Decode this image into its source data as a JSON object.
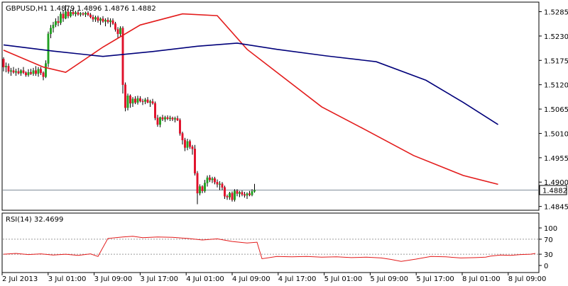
{
  "chart_data": {
    "type": "candlestick",
    "title": "GBPUSD,H1  1.4879 1.4896 1.4876 1.4882",
    "symbol": "GBPUSD",
    "timeframe": "H1",
    "ohlc_header": {
      "open": 1.4879,
      "high": 1.4896,
      "low": 1.4876,
      "close": 1.4882
    },
    "last_price_label": "1.4882",
    "price_ticks": [
      "1.5285",
      "1.5230",
      "1.5175",
      "1.5120",
      "1.5065",
      "1.5010",
      "1.4955",
      "1.4900",
      "1.4845"
    ],
    "ylim": [
      1.4838,
      1.5305
    ],
    "time_labels": [
      "2 Jul 2013",
      "3 Jul 01:00",
      "3 Jul 09:00",
      "3 Jul 17:00",
      "4 Jul 01:00",
      "4 Jul 09:00",
      "4 Jul 17:00",
      "5 Jul 01:00",
      "5 Jul 09:00",
      "5 Jul 17:00",
      "8 Jul 01:00",
      "8 Jul 09:00"
    ],
    "candles": [
      [
        1.5178,
        1.5182,
        1.515,
        1.516
      ],
      [
        1.516,
        1.517,
        1.5148,
        1.5162
      ],
      [
        1.5162,
        1.5168,
        1.5145,
        1.515
      ],
      [
        1.515,
        1.5158,
        1.514,
        1.5152
      ],
      [
        1.5152,
        1.516,
        1.5145,
        1.5148
      ],
      [
        1.5148,
        1.5156,
        1.514,
        1.515
      ],
      [
        1.515,
        1.5158,
        1.5143,
        1.5146
      ],
      [
        1.5146,
        1.5155,
        1.514,
        1.5152
      ],
      [
        1.5152,
        1.516,
        1.5144,
        1.5147
      ],
      [
        1.5147,
        1.515,
        1.5138,
        1.5142
      ],
      [
        1.5142,
        1.5155,
        1.5138,
        1.5148
      ],
      [
        1.5148,
        1.5156,
        1.5142,
        1.5145
      ],
      [
        1.5145,
        1.5158,
        1.514,
        1.5152
      ],
      [
        1.5152,
        1.5162,
        1.514,
        1.5145
      ],
      [
        1.5145,
        1.516,
        1.5138,
        1.5155
      ],
      [
        1.5155,
        1.516,
        1.5142,
        1.5147
      ],
      [
        1.5147,
        1.515,
        1.513,
        1.5138
      ],
      [
        1.5138,
        1.5175,
        1.5135,
        1.5168
      ],
      [
        1.5168,
        1.524,
        1.516,
        1.5235
      ],
      [
        1.5235,
        1.5255,
        1.5225,
        1.5248
      ],
      [
        1.5248,
        1.5262,
        1.5238,
        1.5255
      ],
      [
        1.5255,
        1.527,
        1.525,
        1.5263
      ],
      [
        1.5263,
        1.5275,
        1.5252,
        1.526
      ],
      [
        1.526,
        1.5285,
        1.5255,
        1.528
      ],
      [
        1.528,
        1.5288,
        1.5262,
        1.527
      ],
      [
        1.527,
        1.53,
        1.5268,
        1.5285
      ],
      [
        1.5285,
        1.5292,
        1.527,
        1.5275
      ],
      [
        1.5275,
        1.529,
        1.5272,
        1.5284
      ],
      [
        1.5284,
        1.5292,
        1.5276,
        1.528
      ],
      [
        1.528,
        1.5287,
        1.5274,
        1.5283
      ],
      [
        1.5283,
        1.5288,
        1.5276,
        1.5279
      ],
      [
        1.5279,
        1.5284,
        1.5274,
        1.5281
      ],
      [
        1.5281,
        1.5284,
        1.5276,
        1.5279
      ],
      [
        1.5279,
        1.5285,
        1.5273,
        1.5282
      ],
      [
        1.5282,
        1.5286,
        1.5275,
        1.5278
      ],
      [
        1.5278,
        1.5282,
        1.527,
        1.5273
      ],
      [
        1.5273,
        1.5278,
        1.5262,
        1.5268
      ],
      [
        1.5268,
        1.5276,
        1.5262,
        1.5272
      ],
      [
        1.5272,
        1.5276,
        1.526,
        1.5265
      ],
      [
        1.5265,
        1.5272,
        1.5255,
        1.5269
      ],
      [
        1.5269,
        1.5275,
        1.526,
        1.5263
      ],
      [
        1.5263,
        1.527,
        1.5252,
        1.5266
      ],
      [
        1.5266,
        1.5272,
        1.5258,
        1.5262
      ],
      [
        1.5262,
        1.527,
        1.525,
        1.5265
      ],
      [
        1.5265,
        1.527,
        1.5255,
        1.5258
      ],
      [
        1.5258,
        1.5262,
        1.524,
        1.5245
      ],
      [
        1.5245,
        1.525,
        1.5225,
        1.5235
      ],
      [
        1.5235,
        1.5252,
        1.523,
        1.5248
      ],
      [
        1.5248,
        1.5252,
        1.51,
        1.512
      ],
      [
        1.512,
        1.5125,
        1.506,
        1.5068
      ],
      [
        1.5068,
        1.51,
        1.5062,
        1.5095
      ],
      [
        1.5095,
        1.5098,
        1.5068,
        1.5078
      ],
      [
        1.5078,
        1.5092,
        1.507,
        1.5088
      ],
      [
        1.5088,
        1.5094,
        1.5076,
        1.508
      ],
      [
        1.508,
        1.5095,
        1.5075,
        1.5089
      ],
      [
        1.5089,
        1.5094,
        1.508,
        1.5083
      ],
      [
        1.5083,
        1.5088,
        1.5074,
        1.5082
      ],
      [
        1.5082,
        1.509,
        1.5076,
        1.5086
      ],
      [
        1.5086,
        1.5092,
        1.5078,
        1.508
      ],
      [
        1.508,
        1.5086,
        1.507,
        1.5082
      ],
      [
        1.5082,
        1.5088,
        1.5075,
        1.5078
      ],
      [
        1.5078,
        1.5082,
        1.504,
        1.5045
      ],
      [
        1.5045,
        1.5052,
        1.5025,
        1.503
      ],
      [
        1.503,
        1.5048,
        1.5024,
        1.5046
      ],
      [
        1.5046,
        1.5052,
        1.5038,
        1.5042
      ],
      [
        1.5042,
        1.505,
        1.5036,
        1.5046
      ],
      [
        1.5046,
        1.5051,
        1.504,
        1.5043
      ],
      [
        1.5043,
        1.505,
        1.5038,
        1.5045
      ],
      [
        1.5045,
        1.5048,
        1.5038,
        1.5042
      ],
      [
        1.5042,
        1.5048,
        1.5035,
        1.5044
      ],
      [
        1.5044,
        1.505,
        1.5038,
        1.504
      ],
      [
        1.504,
        1.5044,
        1.5005,
        1.501
      ],
      [
        1.501,
        1.5014,
        1.4985,
        1.4995
      ],
      [
        1.4995,
        1.5,
        1.497,
        1.4978
      ],
      [
        1.4978,
        1.4998,
        1.4972,
        1.4992
      ],
      [
        1.4992,
        1.4996,
        1.4975,
        1.498
      ],
      [
        1.498,
        1.4984,
        1.4962,
        1.4975
      ],
      [
        1.4975,
        1.4984,
        1.4915,
        1.492
      ],
      [
        1.492,
        1.4925,
        1.485,
        1.4875
      ],
      [
        1.4875,
        1.4895,
        1.487,
        1.489
      ],
      [
        1.489,
        1.4893,
        1.4875,
        1.488
      ],
      [
        1.488,
        1.4905,
        1.4876,
        1.4898
      ],
      [
        1.4898,
        1.4915,
        1.489,
        1.491
      ],
      [
        1.491,
        1.4916,
        1.49,
        1.4905
      ],
      [
        1.4905,
        1.4912,
        1.4898,
        1.4908
      ],
      [
        1.4908,
        1.4912,
        1.4895,
        1.49
      ],
      [
        1.49,
        1.4906,
        1.4888,
        1.4895
      ],
      [
        1.4895,
        1.4902,
        1.4882,
        1.4896
      ],
      [
        1.4896,
        1.49,
        1.4882,
        1.4888
      ],
      [
        1.4888,
        1.4892,
        1.4862,
        1.4868
      ],
      [
        1.4868,
        1.4872,
        1.486,
        1.4866
      ],
      [
        1.4866,
        1.4878,
        1.486,
        1.4875
      ],
      [
        1.4875,
        1.4879,
        1.4856,
        1.486
      ],
      [
        1.486,
        1.4884,
        1.4856,
        1.488
      ],
      [
        1.488,
        1.4884,
        1.4868,
        1.4874
      ],
      [
        1.4874,
        1.488,
        1.4866,
        1.4877
      ],
      [
        1.4877,
        1.4881,
        1.4868,
        1.4872
      ],
      [
        1.4872,
        1.4878,
        1.4865,
        1.487
      ],
      [
        1.487,
        1.4877,
        1.4862,
        1.4874
      ],
      [
        1.4874,
        1.488,
        1.4868,
        1.4871
      ],
      [
        1.4871,
        1.4884,
        1.4868,
        1.4879
      ],
      [
        1.4879,
        1.4896,
        1.4876,
        1.4882
      ]
    ],
    "moving_averages": [
      {
        "color": "#e31b1b",
        "values": [
          [
            0,
            1.5198
          ],
          [
            16,
            1.516
          ],
          [
            25,
            1.5148
          ],
          [
            40,
            1.5205
          ],
          [
            55,
            1.5255
          ],
          [
            72,
            1.528
          ],
          [
            86,
            1.5276
          ],
          [
            98,
            1.52
          ],
          [
            128,
            1.507
          ],
          [
            145,
            1.502
          ],
          [
            165,
            1.496
          ],
          [
            185,
            1.4915
          ],
          [
            199,
            1.4895
          ]
        ]
      },
      {
        "color": "#00007a",
        "values": [
          [
            0,
            1.521
          ],
          [
            20,
            1.5196
          ],
          [
            40,
            1.5184
          ],
          [
            60,
            1.5195
          ],
          [
            78,
            1.5207
          ],
          [
            94,
            1.5214
          ],
          [
            110,
            1.52
          ],
          [
            130,
            1.5185
          ],
          [
            150,
            1.5172
          ],
          [
            170,
            1.513
          ],
          [
            185,
            1.508
          ],
          [
            199,
            1.503
          ]
        ]
      }
    ],
    "rsi": {
      "label": "RSI(14) 32.4699",
      "period": 14,
      "last_value": 32.4699,
      "ticks": [
        "100",
        "70",
        "30",
        "0"
      ],
      "levels": [
        70,
        30
      ],
      "ylim": [
        0,
        100
      ],
      "values": [
        [
          0,
          30
        ],
        [
          5,
          32
        ],
        [
          10,
          29
        ],
        [
          15,
          31
        ],
        [
          20,
          28
        ],
        [
          25,
          30
        ],
        [
          30,
          27
        ],
        [
          35,
          31
        ],
        [
          38,
          24
        ],
        [
          42,
          72
        ],
        [
          48,
          76
        ],
        [
          52,
          78
        ],
        [
          56,
          74
        ],
        [
          62,
          76
        ],
        [
          68,
          75
        ],
        [
          74,
          72
        ],
        [
          80,
          68
        ],
        [
          86,
          71
        ],
        [
          92,
          64
        ],
        [
          98,
          60
        ],
        [
          102,
          62
        ],
        [
          104,
          18
        ],
        [
          110,
          24
        ],
        [
          116,
          23
        ],
        [
          122,
          24
        ],
        [
          128,
          22
        ],
        [
          134,
          23
        ],
        [
          140,
          21
        ],
        [
          146,
          22
        ],
        [
          152,
          20
        ],
        [
          156,
          16
        ],
        [
          160,
          11
        ],
        [
          166,
          17
        ],
        [
          172,
          24
        ],
        [
          178,
          23
        ],
        [
          184,
          20
        ],
        [
          190,
          21
        ],
        [
          194,
          22
        ],
        [
          196,
          25
        ],
        [
          200,
          28
        ],
        [
          204,
          27
        ],
        [
          208,
          29
        ],
        [
          212,
          30
        ],
        [
          214,
          32
        ]
      ]
    }
  }
}
